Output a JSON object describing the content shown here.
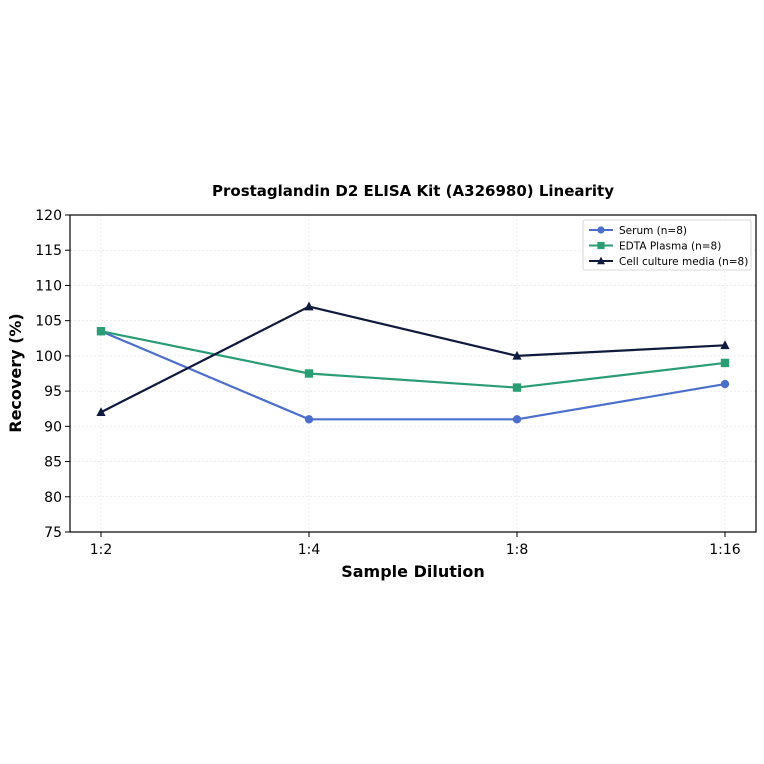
{
  "chart_data": {
    "type": "line",
    "title": "Prostaglandin D2 ELISA Kit (A326980) Linearity",
    "xlabel": "Sample Dilution",
    "ylabel": "Recovery (%)",
    "categories": [
      "1:2",
      "1:4",
      "1:8",
      "1:16"
    ],
    "ylim": [
      75,
      120
    ],
    "yticks": [
      75,
      80,
      85,
      90,
      95,
      100,
      105,
      110,
      115,
      120
    ],
    "grid": true,
    "legend_position": "top-right",
    "series": [
      {
        "name": "Serum (n=8)",
        "values": [
          103.5,
          91,
          91,
          96
        ],
        "color": "#4C6FCB",
        "marker": "circle"
      },
      {
        "name": "EDTA Plasma (n=8)",
        "values": [
          103.5,
          97.5,
          95.5,
          99
        ],
        "color": "#2A9D74",
        "marker": "square"
      },
      {
        "name": "Cell culture media (n=8)",
        "values": [
          92,
          107,
          100,
          101.5
        ],
        "color": "#0F1A3C",
        "marker": "triangle"
      }
    ]
  }
}
